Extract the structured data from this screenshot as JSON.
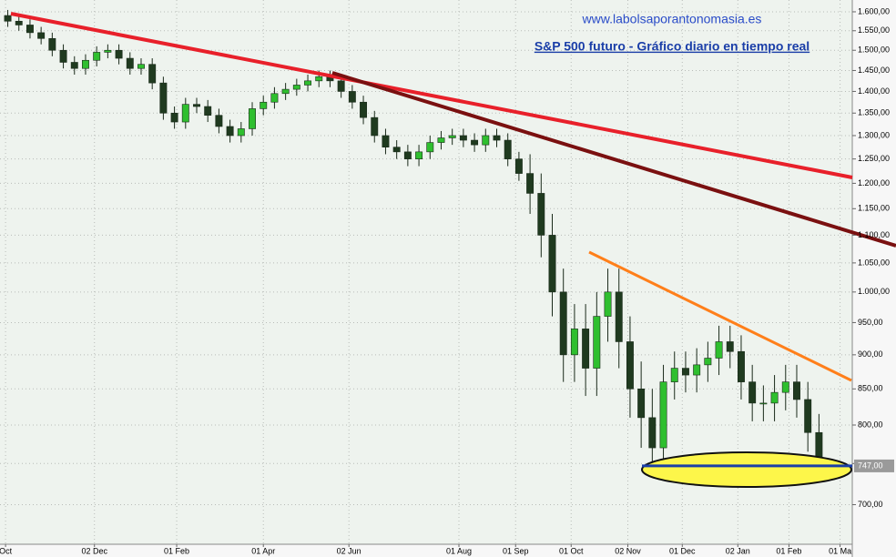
{
  "chart_data": {
    "type": "candlestick",
    "site": "www.labolsaporantonomasia.es",
    "title": "S&P 500 futuro - Gráfico diario en tiempo real",
    "log_scale": true,
    "grid": true,
    "up_color": "#2fbf2f",
    "down_color": "#1f3a1f",
    "ylim": [
      655,
      1632
    ],
    "yticks": [
      {
        "value": 700,
        "label": "700,00"
      },
      {
        "value": 750,
        "label": "750,00"
      },
      {
        "value": 800,
        "label": "800,00"
      },
      {
        "value": 850,
        "label": "850,00"
      },
      {
        "value": 900,
        "label": "900,00"
      },
      {
        "value": 950,
        "label": "950,00"
      },
      {
        "value": 1000,
        "label": "1.000,00"
      },
      {
        "value": 1050,
        "label": "1.050,00"
      },
      {
        "value": 1100,
        "label": "1.100,00"
      },
      {
        "value": 1150,
        "label": "1.150,00"
      },
      {
        "value": 1200,
        "label": "1.200,00"
      },
      {
        "value": 1250,
        "label": "1.250,00"
      },
      {
        "value": 1300,
        "label": "1.300,00"
      },
      {
        "value": 1350,
        "label": "1.350,00"
      },
      {
        "value": 1400,
        "label": "1.400,00"
      },
      {
        "value": 1450,
        "label": "1.450,00"
      },
      {
        "value": 1500,
        "label": "1.500,00"
      },
      {
        "value": 1550,
        "label": "1.550,00"
      },
      {
        "value": 1600,
        "label": "1.600,00"
      }
    ],
    "xlim": [
      -0.7,
      76
    ],
    "xticks": [
      {
        "value": -0.2,
        "label": "Oct"
      },
      {
        "value": 7.8,
        "label": "02 Dec"
      },
      {
        "value": 15.2,
        "label": "01 Feb"
      },
      {
        "value": 23,
        "label": "01 Apr"
      },
      {
        "value": 30.7,
        "label": "02 Jun"
      },
      {
        "value": 40.6,
        "label": "01 Aug"
      },
      {
        "value": 45.7,
        "label": "01 Sep"
      },
      {
        "value": 50.7,
        "label": "01 Oct"
      },
      {
        "value": 55.8,
        "label": "02 Nov"
      },
      {
        "value": 60.7,
        "label": "01 Dec"
      },
      {
        "value": 65.7,
        "label": "02 Jan"
      },
      {
        "value": 70.3,
        "label": "01 Feb"
      },
      {
        "value": 74.9,
        "label": "01 Ma"
      }
    ],
    "last_price": {
      "value": 747,
      "label": "747,00"
    },
    "x": [
      0,
      1,
      2,
      3,
      4,
      5,
      6,
      7,
      8,
      9,
      10,
      11,
      12,
      13,
      14,
      15,
      16,
      17,
      18,
      19,
      20,
      21,
      22,
      23,
      24,
      25,
      26,
      27,
      28,
      29,
      30,
      31,
      32,
      33,
      34,
      35,
      36,
      37,
      38,
      39,
      40,
      41,
      42,
      43,
      44,
      45,
      46,
      47,
      48,
      49,
      50,
      51,
      52,
      53,
      54,
      55,
      56,
      57,
      58,
      59,
      60,
      61,
      62,
      63,
      64,
      65,
      66,
      67,
      68,
      69,
      70,
      71,
      72,
      73
    ],
    "open": [
      1590,
      1575,
      1565,
      1545,
      1530,
      1500,
      1470,
      1455,
      1475,
      1495,
      1500,
      1480,
      1455,
      1465,
      1420,
      1350,
      1330,
      1370,
      1365,
      1345,
      1320,
      1300,
      1315,
      1360,
      1375,
      1395,
      1405,
      1415,
      1425,
      1435,
      1425,
      1400,
      1375,
      1340,
      1300,
      1275,
      1265,
      1250,
      1265,
      1285,
      1295,
      1300,
      1290,
      1280,
      1300,
      1290,
      1250,
      1220,
      1180,
      1100,
      1000,
      900,
      940,
      880,
      960,
      1000,
      920,
      850,
      810,
      770,
      860,
      880,
      870,
      885,
      895,
      920,
      905,
      860,
      830,
      830,
      845,
      860,
      835,
      790
    ],
    "high": [
      1605,
      1590,
      1580,
      1560,
      1545,
      1515,
      1485,
      1490,
      1510,
      1515,
      1515,
      1495,
      1480,
      1480,
      1435,
      1365,
      1385,
      1385,
      1380,
      1360,
      1335,
      1330,
      1375,
      1390,
      1410,
      1420,
      1430,
      1440,
      1450,
      1450,
      1440,
      1415,
      1390,
      1355,
      1315,
      1290,
      1280,
      1280,
      1300,
      1310,
      1315,
      1315,
      1305,
      1315,
      1315,
      1305,
      1265,
      1260,
      1220,
      1140,
      1040,
      980,
      980,
      1000,
      1040,
      1040,
      960,
      890,
      850,
      885,
      905,
      905,
      910,
      920,
      945,
      945,
      930,
      885,
      855,
      870,
      885,
      885,
      860,
      815
    ],
    "low": [
      1560,
      1550,
      1530,
      1515,
      1485,
      1455,
      1440,
      1440,
      1460,
      1480,
      1465,
      1440,
      1440,
      1405,
      1335,
      1315,
      1315,
      1350,
      1330,
      1305,
      1285,
      1285,
      1300,
      1345,
      1360,
      1380,
      1390,
      1400,
      1410,
      1410,
      1385,
      1360,
      1325,
      1285,
      1260,
      1250,
      1235,
      1235,
      1250,
      1270,
      1280,
      1275,
      1265,
      1265,
      1275,
      1235,
      1205,
      1140,
      1060,
      960,
      860,
      860,
      840,
      840,
      920,
      880,
      810,
      770,
      745,
      745,
      835,
      845,
      845,
      860,
      870,
      880,
      835,
      805,
      805,
      805,
      820,
      810,
      765,
      740
    ],
    "close": [
      1575,
      1565,
      1545,
      1530,
      1500,
      1470,
      1455,
      1475,
      1495,
      1500,
      1480,
      1455,
      1465,
      1420,
      1350,
      1330,
      1370,
      1365,
      1345,
      1320,
      1300,
      1315,
      1360,
      1375,
      1395,
      1405,
      1415,
      1425,
      1435,
      1425,
      1400,
      1375,
      1340,
      1300,
      1275,
      1265,
      1250,
      1265,
      1285,
      1295,
      1300,
      1290,
      1280,
      1300,
      1290,
      1250,
      1220,
      1180,
      1100,
      1000,
      900,
      940,
      880,
      960,
      1000,
      920,
      850,
      810,
      770,
      860,
      880,
      870,
      885,
      895,
      920,
      905,
      860,
      830,
      830,
      845,
      860,
      835,
      790,
      747
    ]
  }
}
